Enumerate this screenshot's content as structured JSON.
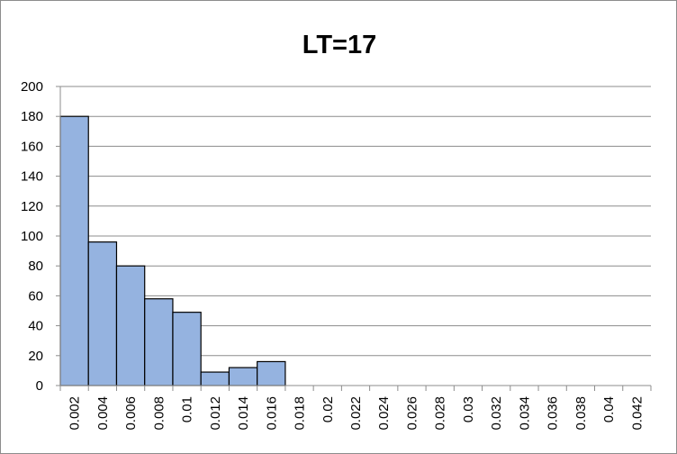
{
  "chart_data": {
    "type": "bar",
    "title": "LT=17",
    "xlabel": "",
    "ylabel": "",
    "categories": [
      "0.002",
      "0.004",
      "0.006",
      "0.008",
      "0.01",
      "0.012",
      "0.014",
      "0.016",
      "0.018",
      "0.02",
      "0.022",
      "0.024",
      "0.026",
      "0.028",
      "0.03",
      "0.032",
      "0.034",
      "0.036",
      "0.038",
      "0.04",
      "0.042"
    ],
    "values": [
      180,
      96,
      80,
      58,
      49,
      9,
      12,
      16,
      0,
      0,
      0,
      0,
      0,
      0,
      0,
      0,
      0,
      0,
      0,
      0,
      0
    ],
    "ylim": [
      0,
      200
    ],
    "yticks": [
      0,
      20,
      40,
      60,
      80,
      100,
      120,
      140,
      160,
      180,
      200
    ],
    "grid": true,
    "legend": "none",
    "bar_color": "#95b3e0",
    "bar_edge_color": "#000000",
    "grid_color": "#8c8c8c"
  }
}
